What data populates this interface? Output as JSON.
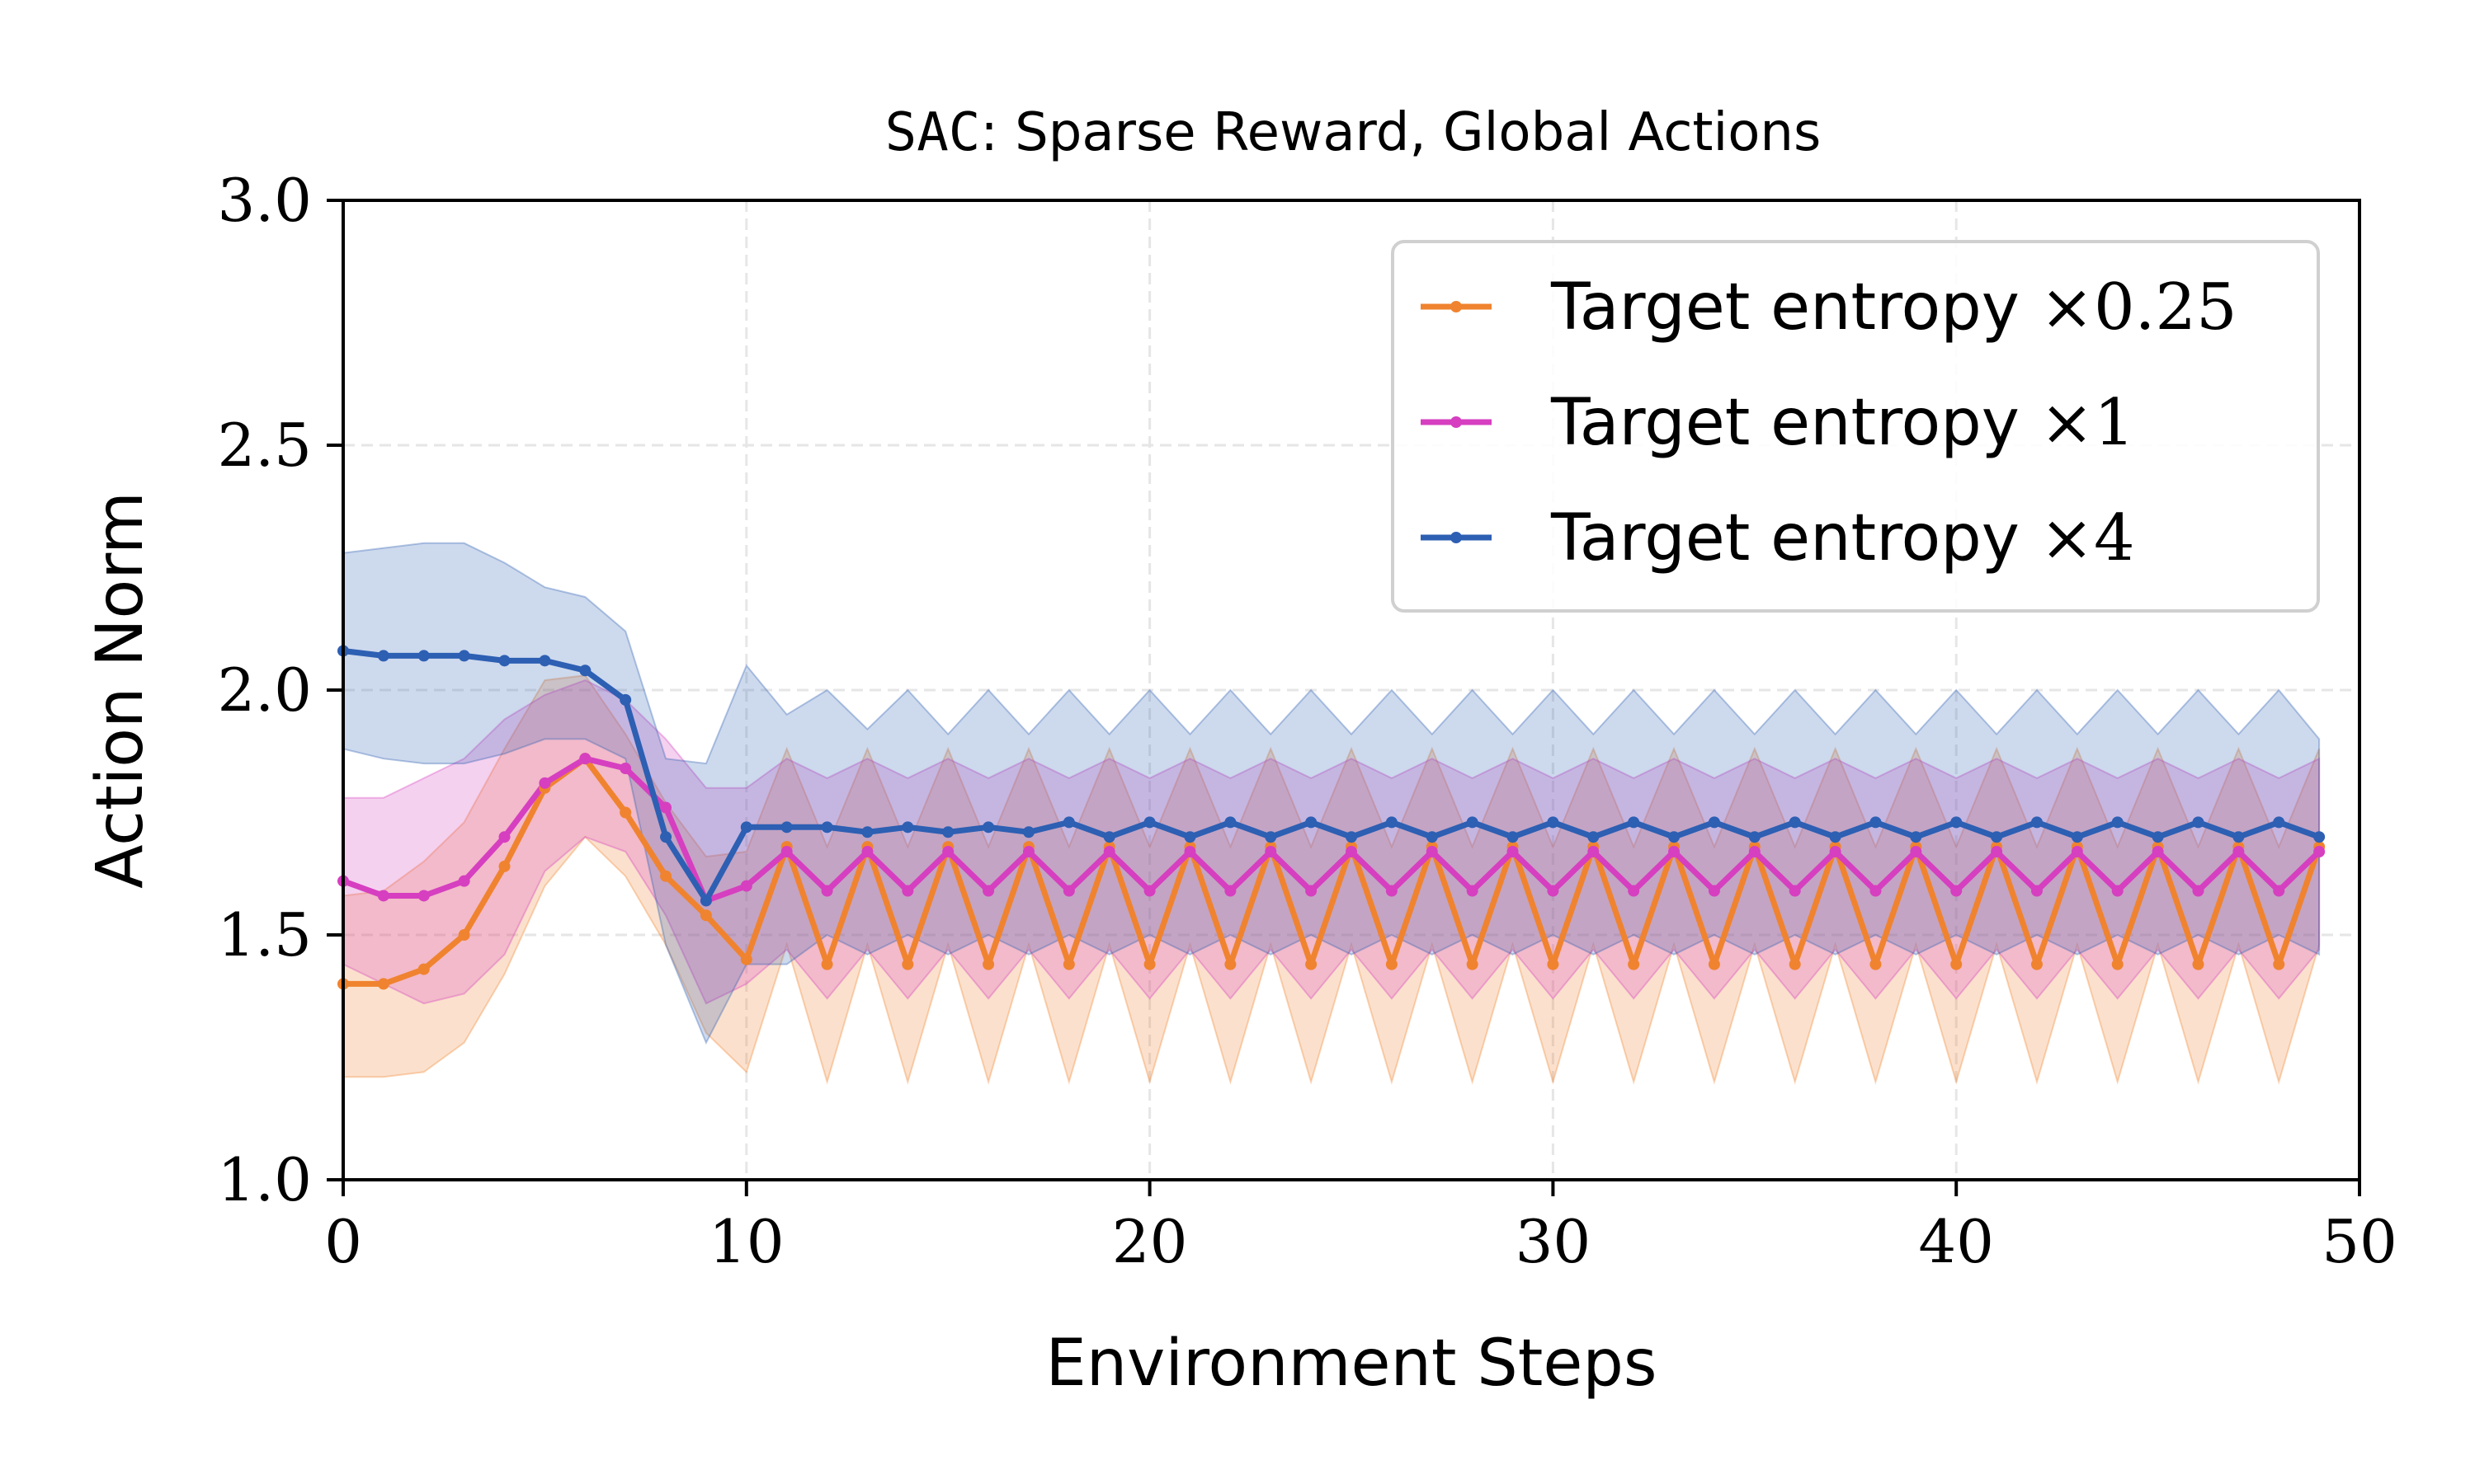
{
  "chart_data": {
    "type": "line",
    "title_prefix": "SAC",
    "title_rest": ": Sparse Reward, Global Actions",
    "xlabel": "Environment Steps",
    "ylabel": "Action Norm",
    "xlim": [
      0,
      50
    ],
    "ylim": [
      1.0,
      3.0
    ],
    "xticks": [
      0,
      10,
      20,
      30,
      40,
      50
    ],
    "xtick_labels": [
      "0",
      "10",
      "20",
      "30",
      "40",
      "50"
    ],
    "yticks": [
      1.0,
      1.5,
      2.0,
      2.5,
      3.0
    ],
    "ytick_labels": [
      "1.0",
      "1.5",
      "2.0",
      "2.5",
      "3.0"
    ],
    "grid": true,
    "legend_position": "top-right",
    "x": [
      0,
      1,
      2,
      3,
      4,
      5,
      6,
      7,
      8,
      9,
      10,
      11,
      12,
      13,
      14,
      15,
      16,
      17,
      18,
      19,
      20,
      21,
      22,
      23,
      24,
      25,
      26,
      27,
      28,
      29,
      30,
      31,
      32,
      33,
      34,
      35,
      36,
      37,
      38,
      39,
      40,
      41,
      42,
      43,
      44,
      45,
      46,
      47,
      48,
      49
    ],
    "series": [
      {
        "name": "Target entropy ×0.25",
        "label_text": "Target entropy",
        "label_math": "×0.25",
        "color": "#f0832f",
        "values": [
          1.4,
          1.4,
          1.43,
          1.5,
          1.64,
          1.8,
          1.86,
          1.75,
          1.62,
          1.54,
          1.45,
          1.68,
          1.44,
          1.68,
          1.44,
          1.68,
          1.44,
          1.68,
          1.44,
          1.68,
          1.44,
          1.68,
          1.44,
          1.68,
          1.44,
          1.68,
          1.44,
          1.68,
          1.44,
          1.68,
          1.44,
          1.68,
          1.44,
          1.68,
          1.44,
          1.68,
          1.44,
          1.68,
          1.44,
          1.68,
          1.44,
          1.68,
          1.44,
          1.68,
          1.44,
          1.68,
          1.44,
          1.68,
          1.44,
          1.68
        ],
        "lower": [
          1.21,
          1.21,
          1.22,
          1.28,
          1.42,
          1.6,
          1.7,
          1.62,
          1.48,
          1.3,
          1.22,
          1.48,
          1.2,
          1.48,
          1.2,
          1.48,
          1.2,
          1.48,
          1.2,
          1.48,
          1.2,
          1.48,
          1.2,
          1.48,
          1.2,
          1.48,
          1.2,
          1.48,
          1.2,
          1.48,
          1.2,
          1.48,
          1.2,
          1.48,
          1.2,
          1.48,
          1.2,
          1.48,
          1.2,
          1.48,
          1.2,
          1.48,
          1.2,
          1.48,
          1.2,
          1.48,
          1.2,
          1.48,
          1.2,
          1.48
        ],
        "upper": [
          1.58,
          1.59,
          1.65,
          1.73,
          1.88,
          2.02,
          2.03,
          1.91,
          1.77,
          1.66,
          1.67,
          1.88,
          1.68,
          1.88,
          1.68,
          1.88,
          1.68,
          1.88,
          1.68,
          1.88,
          1.68,
          1.88,
          1.68,
          1.88,
          1.68,
          1.88,
          1.68,
          1.88,
          1.68,
          1.88,
          1.68,
          1.88,
          1.68,
          1.88,
          1.68,
          1.88,
          1.68,
          1.88,
          1.68,
          1.88,
          1.68,
          1.88,
          1.68,
          1.88,
          1.68,
          1.88,
          1.68,
          1.88,
          1.68,
          1.88
        ]
      },
      {
        "name": "Target entropy ×1",
        "label_text": "Target entropy",
        "label_math": "×1",
        "color": "#d63fc0",
        "values": [
          1.61,
          1.58,
          1.58,
          1.61,
          1.7,
          1.81,
          1.86,
          1.84,
          1.76,
          1.57,
          1.6,
          1.67,
          1.59,
          1.67,
          1.59,
          1.67,
          1.59,
          1.67,
          1.59,
          1.67,
          1.59,
          1.67,
          1.59,
          1.67,
          1.59,
          1.67,
          1.59,
          1.67,
          1.59,
          1.67,
          1.59,
          1.67,
          1.59,
          1.67,
          1.59,
          1.67,
          1.59,
          1.67,
          1.59,
          1.67,
          1.59,
          1.67,
          1.59,
          1.67,
          1.59,
          1.67,
          1.59,
          1.67,
          1.59,
          1.67
        ],
        "lower": [
          1.44,
          1.4,
          1.36,
          1.38,
          1.46,
          1.63,
          1.7,
          1.67,
          1.54,
          1.36,
          1.4,
          1.47,
          1.37,
          1.47,
          1.37,
          1.47,
          1.37,
          1.47,
          1.37,
          1.47,
          1.37,
          1.47,
          1.37,
          1.47,
          1.37,
          1.47,
          1.37,
          1.47,
          1.37,
          1.47,
          1.37,
          1.47,
          1.37,
          1.47,
          1.37,
          1.47,
          1.37,
          1.47,
          1.37,
          1.47,
          1.37,
          1.47,
          1.37,
          1.47,
          1.37,
          1.47,
          1.37,
          1.47,
          1.37,
          1.47
        ],
        "upper": [
          1.78,
          1.78,
          1.82,
          1.86,
          1.94,
          1.99,
          2.02,
          1.98,
          1.9,
          1.8,
          1.8,
          1.86,
          1.82,
          1.86,
          1.82,
          1.86,
          1.82,
          1.86,
          1.82,
          1.86,
          1.82,
          1.86,
          1.82,
          1.86,
          1.82,
          1.86,
          1.82,
          1.86,
          1.82,
          1.86,
          1.82,
          1.86,
          1.82,
          1.86,
          1.82,
          1.86,
          1.82,
          1.86,
          1.82,
          1.86,
          1.82,
          1.86,
          1.82,
          1.86,
          1.82,
          1.86,
          1.82,
          1.86,
          1.82,
          1.86
        ]
      },
      {
        "name": "Target entropy ×4",
        "label_text": "Target entropy",
        "label_math": "×4",
        "color": "#2d5fb3",
        "values": [
          2.08,
          2.07,
          2.07,
          2.07,
          2.06,
          2.06,
          2.04,
          1.98,
          1.7,
          1.57,
          1.72,
          1.72,
          1.72,
          1.71,
          1.72,
          1.71,
          1.72,
          1.71,
          1.73,
          1.7,
          1.73,
          1.7,
          1.73,
          1.7,
          1.73,
          1.7,
          1.73,
          1.7,
          1.73,
          1.7,
          1.73,
          1.7,
          1.73,
          1.7,
          1.73,
          1.7,
          1.73,
          1.7,
          1.73,
          1.7,
          1.73,
          1.7,
          1.73,
          1.7,
          1.73,
          1.7,
          1.73,
          1.7,
          1.73,
          1.7
        ],
        "lower": [
          1.88,
          1.86,
          1.85,
          1.85,
          1.87,
          1.9,
          1.9,
          1.86,
          1.48,
          1.28,
          1.44,
          1.44,
          1.5,
          1.46,
          1.5,
          1.46,
          1.5,
          1.46,
          1.5,
          1.46,
          1.5,
          1.46,
          1.5,
          1.46,
          1.5,
          1.46,
          1.5,
          1.46,
          1.5,
          1.46,
          1.5,
          1.46,
          1.5,
          1.46,
          1.5,
          1.46,
          1.5,
          1.46,
          1.5,
          1.46,
          1.5,
          1.46,
          1.5,
          1.46,
          1.5,
          1.46,
          1.5,
          1.46,
          1.5,
          1.46
        ],
        "upper": [
          2.28,
          2.29,
          2.3,
          2.3,
          2.26,
          2.21,
          2.19,
          2.12,
          1.86,
          1.85,
          2.05,
          1.95,
          2.0,
          1.92,
          2.0,
          1.91,
          2.0,
          1.91,
          2.0,
          1.91,
          2.0,
          1.91,
          2.0,
          1.91,
          2.0,
          1.91,
          2.0,
          1.91,
          2.0,
          1.91,
          2.0,
          1.91,
          2.0,
          1.91,
          2.0,
          1.91,
          2.0,
          1.91,
          2.0,
          1.91,
          2.0,
          1.91,
          2.0,
          1.91,
          2.0,
          1.91,
          2.0,
          1.91,
          2.0,
          1.9
        ]
      }
    ]
  }
}
